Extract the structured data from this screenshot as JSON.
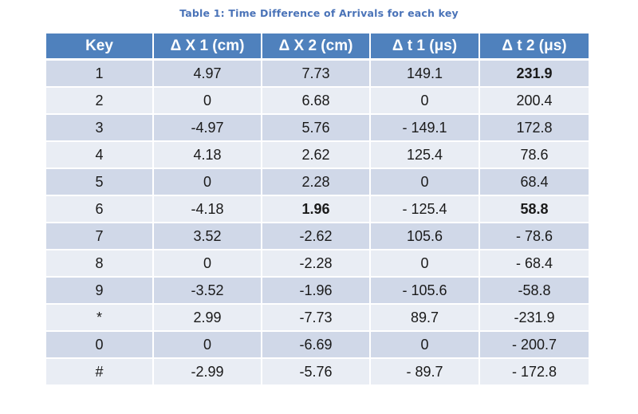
{
  "caption": "Table 1: Time Difference of Arrivals for each key",
  "table": {
    "headers": [
      "Key",
      "Δ X 1 (cm)",
      "Δ X 2 (cm)",
      "Δ t 1 (μs)",
      "Δ t 2 (μs)"
    ],
    "rows": [
      [
        "1",
        "4.97",
        "7.73",
        "149.1",
        "231.9"
      ],
      [
        "2",
        "0",
        "6.68",
        "0",
        "200.4"
      ],
      [
        "3",
        "-4.97",
        "5.76",
        "- 149.1",
        "172.8"
      ],
      [
        "4",
        "4.18",
        "2.62",
        "125.4",
        "78.6"
      ],
      [
        "5",
        "0",
        "2.28",
        "0",
        "68.4"
      ],
      [
        "6",
        "-4.18",
        "1.96",
        "- 125.4",
        "58.8"
      ],
      [
        "7",
        "3.52",
        "-2.62",
        "105.6",
        "- 78.6"
      ],
      [
        "8",
        "0",
        "-2.28",
        "0",
        "- 68.4"
      ],
      [
        "9",
        "-3.52",
        "-1.96",
        "- 105.6",
        "-58.8"
      ],
      [
        "*",
        "2.99",
        "-7.73",
        "89.7",
        "-231.9"
      ],
      [
        "0",
        "0",
        "-6.69",
        "0",
        "- 200.7"
      ],
      [
        "#",
        "-2.99",
        "-5.76",
        "- 89.7",
        "- 172.8"
      ]
    ],
    "bold_cells": [
      [
        0,
        4
      ],
      [
        5,
        2
      ],
      [
        5,
        4
      ]
    ]
  },
  "colors": {
    "caption": "#4a73b8",
    "header_bg": "#4f81bd",
    "row_odd": "#d0d8e8",
    "row_even": "#e9edf4"
  }
}
